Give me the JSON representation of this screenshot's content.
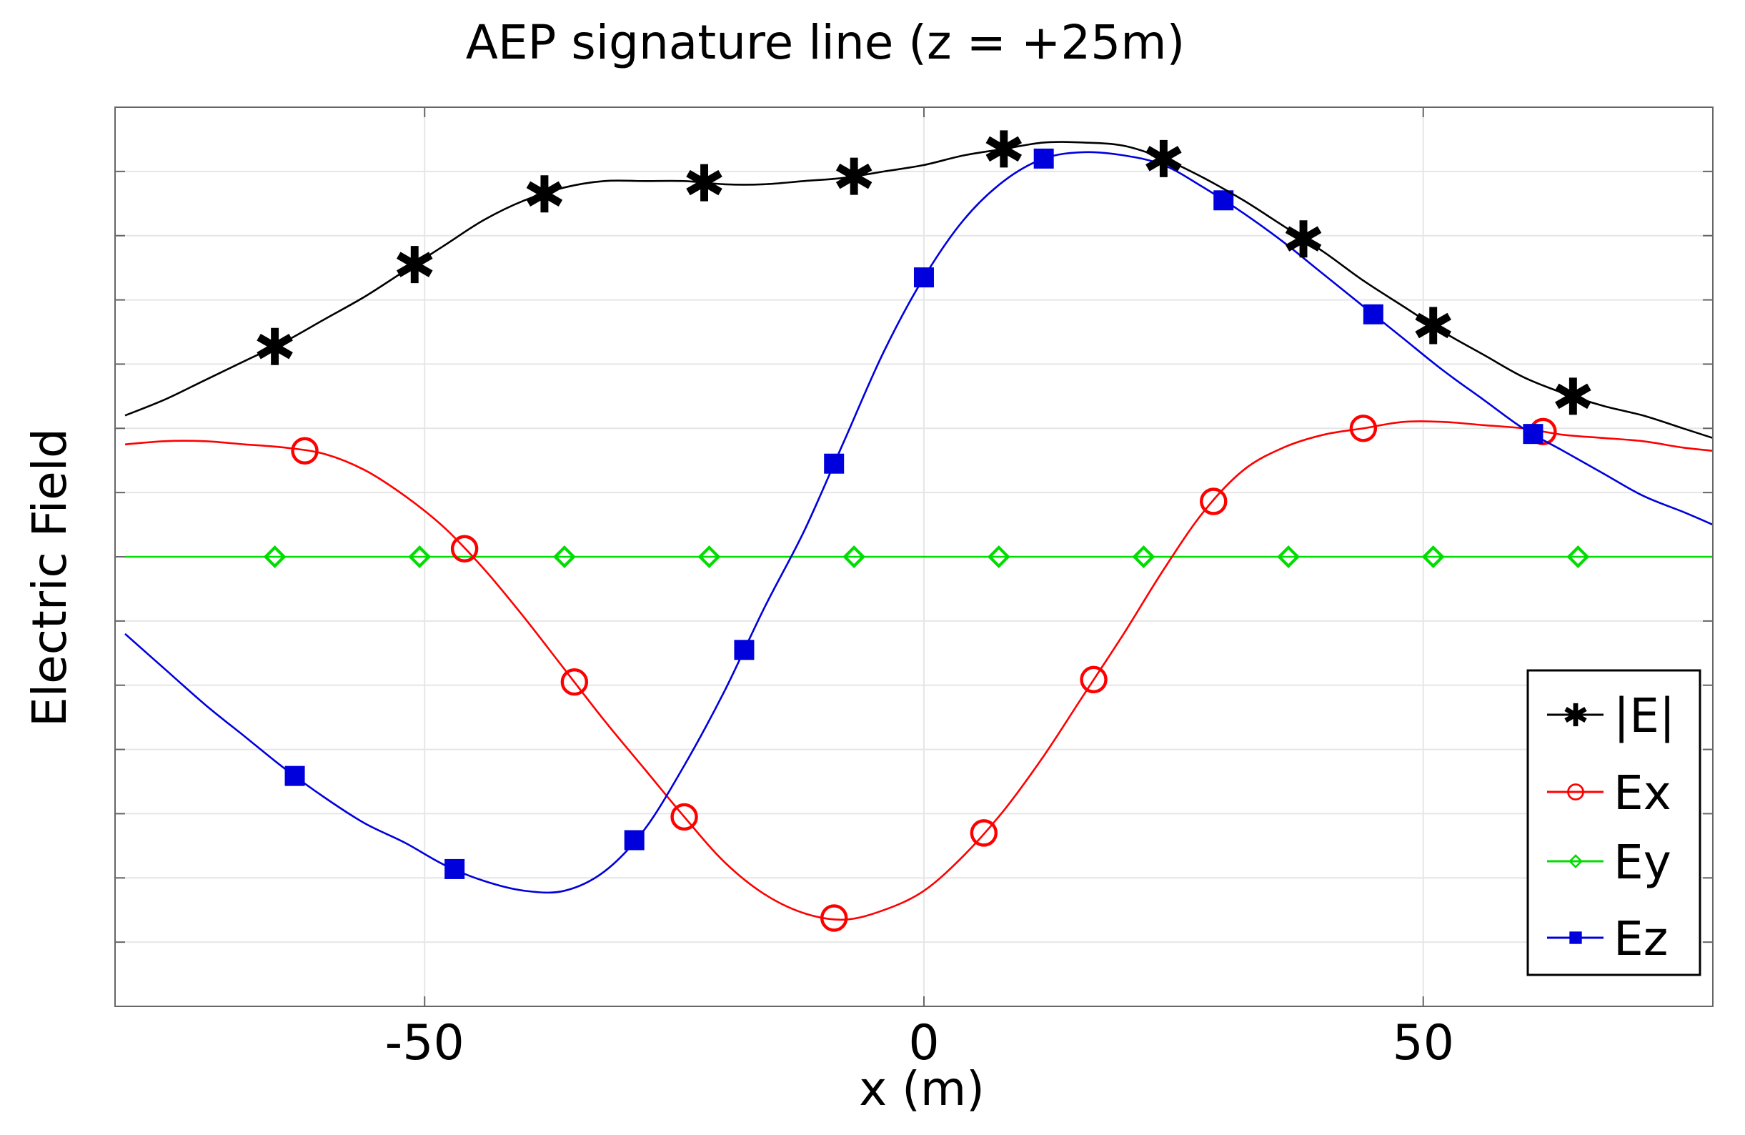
{
  "chart_data": {
    "type": "line",
    "title": "AEP signature line (z = +25m)",
    "xlabel": "x (m)",
    "ylabel": "Electric Field",
    "xlim": [
      -81,
      79
    ],
    "ylim": [
      -14,
      14
    ],
    "xticks": [
      -50,
      0,
      50
    ],
    "yticks": [
      -12,
      -10,
      -8,
      -6,
      -4,
      -2,
      0,
      2,
      4,
      6,
      8,
      10,
      12
    ],
    "y_tick_labels_shown": false,
    "grid": true,
    "legend_position": "bottom-right",
    "x": [
      -80,
      -76,
      -72,
      -68,
      -64,
      -60,
      -56,
      -52,
      -48,
      -44,
      -40,
      -36,
      -32,
      -28,
      -24,
      -20,
      -16,
      -12,
      -8,
      -4,
      0,
      4,
      8,
      12,
      16,
      20,
      24,
      28,
      32,
      36,
      40,
      44,
      48,
      52,
      56,
      60,
      64,
      68,
      72,
      76,
      79
    ],
    "series": [
      {
        "name": "|E|",
        "color": "#000000",
        "marker": "star",
        "values": [
          4.4,
          4.9,
          5.5,
          6.1,
          6.7,
          7.4,
          8.1,
          8.9,
          9.7,
          10.5,
          11.1,
          11.5,
          11.7,
          11.7,
          11.7,
          11.6,
          11.6,
          11.7,
          11.8,
          12.0,
          12.2,
          12.5,
          12.7,
          12.9,
          12.9,
          12.8,
          12.4,
          11.8,
          11.1,
          10.3,
          9.5,
          8.6,
          7.8,
          7.0,
          6.3,
          5.6,
          5.1,
          4.7,
          4.4,
          4.0,
          3.7
        ],
        "marker_x": [
          -65,
          -51,
          -38,
          -22,
          -7,
          8,
          24,
          38,
          51,
          65
        ]
      },
      {
        "name": "Ex",
        "color": "#ff0000",
        "marker": "circle",
        "values": [
          3.5,
          3.6,
          3.6,
          3.5,
          3.4,
          3.2,
          2.7,
          1.9,
          0.9,
          -0.4,
          -1.9,
          -3.5,
          -5.1,
          -6.6,
          -8.1,
          -9.5,
          -10.5,
          -11.1,
          -11.3,
          -11.0,
          -10.4,
          -9.3,
          -7.9,
          -6.2,
          -4.3,
          -2.4,
          -0.4,
          1.4,
          2.7,
          3.4,
          3.8,
          4.0,
          4.2,
          4.2,
          4.1,
          4.0,
          3.8,
          3.7,
          3.6,
          3.4,
          3.3
        ],
        "marker_x": [
          -62,
          -46,
          -35,
          -24,
          -9,
          6,
          17,
          29,
          44,
          62
        ]
      },
      {
        "name": "Ey",
        "color": "#00dd00",
        "marker": "diamond",
        "values": [
          0.0,
          0.0,
          0.0,
          0.0,
          0.0,
          0.0,
          0.0,
          0.0,
          0.0,
          0.0,
          0.0,
          0.0,
          0.0,
          0.0,
          0.0,
          0.0,
          0.0,
          0.0,
          0.0,
          0.0,
          0.0,
          0.0,
          0.0,
          0.0,
          0.0,
          0.0,
          0.0,
          0.0,
          0.0,
          0.0,
          0.0,
          0.0,
          0.0,
          0.0,
          0.0,
          0.0,
          0.0,
          0.0,
          0.0,
          0.0,
          0.0
        ],
        "marker_x": [
          -65,
          -50.5,
          -36,
          -21.5,
          -7,
          7.5,
          22,
          36.5,
          51,
          65.5
        ]
      },
      {
        "name": "Ez",
        "color": "#0000dd",
        "marker": "square",
        "values": [
          -2.4,
          -3.5,
          -4.6,
          -5.6,
          -6.6,
          -7.5,
          -8.3,
          -8.9,
          -9.6,
          -10.1,
          -10.4,
          -10.4,
          -9.8,
          -8.5,
          -6.5,
          -4.2,
          -1.6,
          0.8,
          3.6,
          6.4,
          8.7,
          10.5,
          11.7,
          12.4,
          12.6,
          12.5,
          12.2,
          11.5,
          10.7,
          9.8,
          8.8,
          7.8,
          6.8,
          5.8,
          4.9,
          4.0,
          3.3,
          2.6,
          1.9,
          1.4,
          1.0
        ],
        "marker_x": [
          -63,
          -47,
          -29,
          -18,
          -9,
          0,
          12,
          30,
          45,
          61
        ]
      }
    ]
  }
}
